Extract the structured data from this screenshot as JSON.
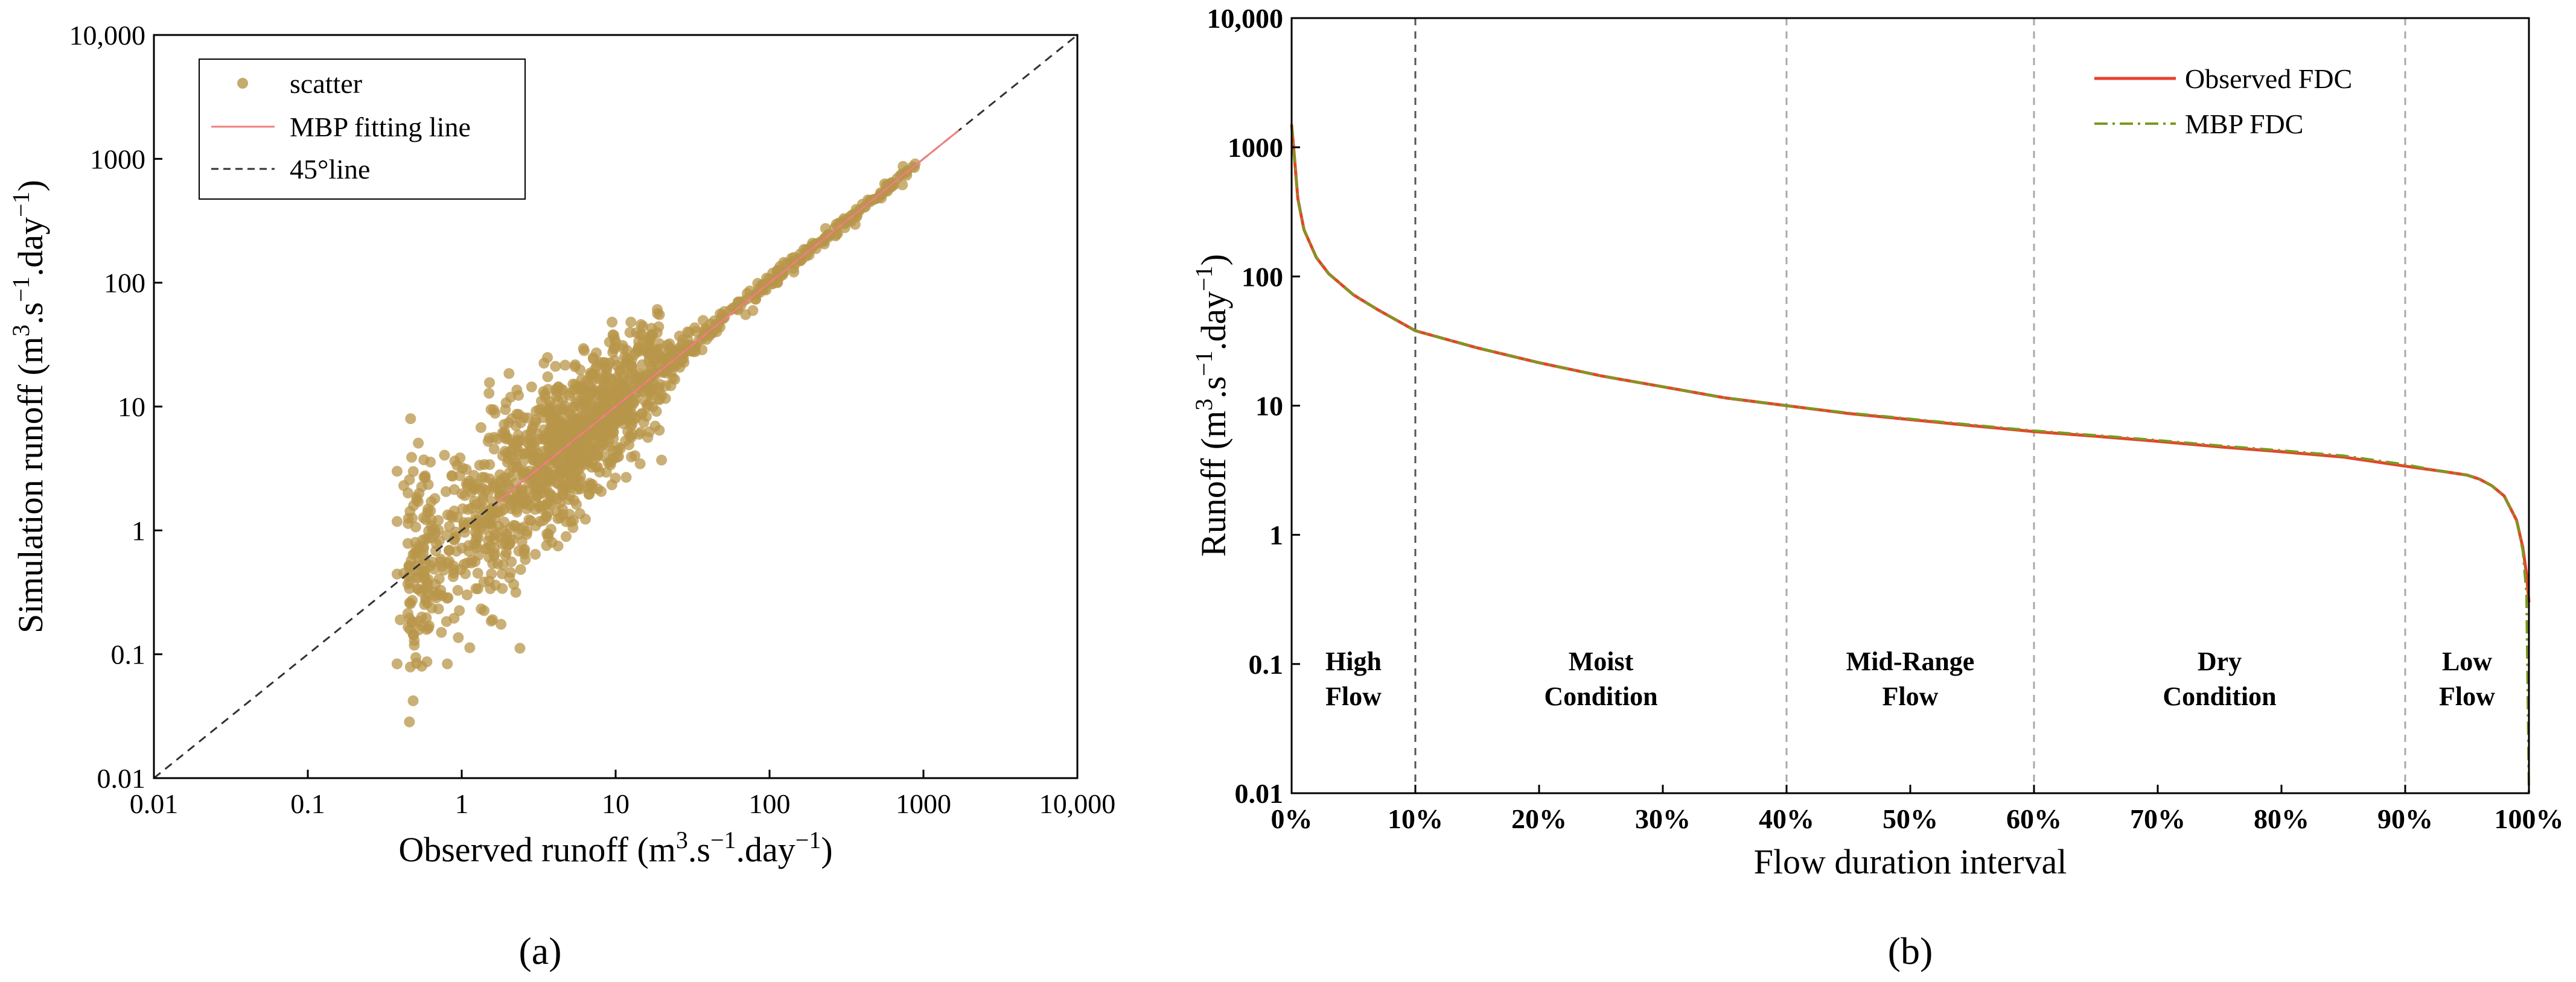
{
  "chart_data": [
    {
      "id": "a",
      "type": "scatter",
      "panel_label": "(a)",
      "xlabel": "Observed runoff (m³.s⁻¹.day⁻¹)",
      "ylabel": "Simulation runoff (m³.s⁻¹.day⁻¹)",
      "xscale": "log",
      "yscale": "log",
      "xlim": [
        0.01,
        10000
      ],
      "ylim": [
        0.01,
        10000
      ],
      "xticks": [
        0.01,
        0.1,
        1,
        10,
        100,
        1000,
        10000
      ],
      "yticks": [
        0.01,
        0.1,
        1,
        10,
        100,
        1000,
        10000
      ],
      "xtick_labels": [
        "0.01",
        "0.1",
        "1",
        "10",
        "100",
        "1000",
        "10,000"
      ],
      "ytick_labels": [
        "0.01",
        "0.1",
        "1",
        "10",
        "100",
        "1000",
        "10,000"
      ],
      "legend_position": "top-left",
      "legend": [
        "scatter",
        "MBP fitting line",
        "45°line"
      ],
      "series": [
        {
          "name": "scatter",
          "kind": "points",
          "color": "#b8954a",
          "description_count": 1500
        },
        {
          "name": "MBP fitting line",
          "kind": "line",
          "color": "#f08080",
          "x": [
            1.7,
            1700
          ],
          "y": [
            1.7,
            1700
          ]
        },
        {
          "name": "45°line",
          "kind": "line",
          "style": "dashed",
          "color": "#333333",
          "x": [
            0.01,
            10000
          ],
          "y": [
            0.01,
            10000
          ]
        }
      ]
    },
    {
      "id": "b",
      "type": "line",
      "panel_label": "(b)",
      "xlabel": "Flow duration interval",
      "ylabel": "Runoff (m³.s⁻¹.day⁻¹)",
      "yscale": "log",
      "xlim": [
        0,
        100
      ],
      "ylim": [
        0.01,
        10000
      ],
      "xticks": [
        0,
        10,
        20,
        30,
        40,
        50,
        60,
        70,
        80,
        90,
        100
      ],
      "xtick_labels": [
        "0%",
        "10%",
        "20%",
        "30%",
        "40%",
        "50%",
        "60%",
        "70%",
        "80%",
        "90%",
        "100%"
      ],
      "yticks": [
        0.01,
        0.1,
        1,
        10,
        100,
        1000,
        10000
      ],
      "ytick_labels": [
        "0.01",
        "0.1",
        "1",
        "10",
        "100",
        "1000",
        "10,000"
      ],
      "legend_position": "top-right",
      "vlines": [
        10,
        40,
        60,
        90
      ],
      "regions": [
        {
          "lines": [
            "High",
            "Flow"
          ],
          "x": 5
        },
        {
          "lines": [
            "Moist",
            "Condition"
          ],
          "x": 25
        },
        {
          "lines": [
            "Mid-Range",
            "Flow"
          ],
          "x": 50
        },
        {
          "lines": [
            "Dry",
            "Condition"
          ],
          "x": 75
        },
        {
          "lines": [
            "Low",
            "Flow"
          ],
          "x": 95
        }
      ],
      "x": [
        0,
        0.2,
        0.5,
        1,
        2,
        3,
        5,
        7,
        10,
        15,
        20,
        25,
        30,
        35,
        40,
        45,
        50,
        55,
        60,
        65,
        70,
        75,
        80,
        85,
        90,
        93,
        95,
        96,
        97,
        98,
        99,
        99.5,
        99.8,
        100
      ],
      "series": [
        {
          "name": "Observed FDC",
          "color": "#e8412b",
          "style": "solid",
          "values": [
            1500,
            900,
            400,
            230,
            140,
            105,
            72,
            55,
            38,
            28,
            21.5,
            17,
            14,
            11.5,
            10,
            8.7,
            7.8,
            7.0,
            6.3,
            5.8,
            5.3,
            4.8,
            4.4,
            4.0,
            3.4,
            3.1,
            2.9,
            2.7,
            2.4,
            2.0,
            1.3,
            0.8,
            0.5,
            0.3
          ]
        },
        {
          "name": "MBP FDC",
          "color": "#7a9a1f",
          "style": "dashdot",
          "values": [
            1500,
            900,
            400,
            230,
            140,
            105,
            72,
            55,
            38,
            28,
            21.5,
            17,
            14,
            11.5,
            10,
            8.8,
            7.9,
            7.1,
            6.4,
            5.9,
            5.4,
            4.9,
            4.5,
            4.1,
            3.5,
            3.1,
            2.9,
            2.7,
            2.4,
            2.0,
            1.3,
            0.75,
            0.35,
            0.01
          ]
        }
      ]
    }
  ]
}
